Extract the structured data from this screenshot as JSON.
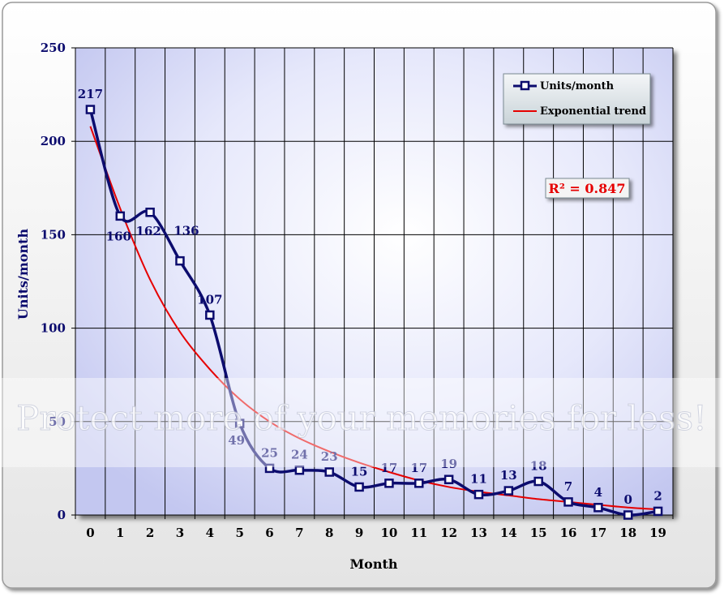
{
  "chart_data": {
    "type": "line",
    "xlabel": "Month",
    "ylabel": "Units/month",
    "ylim": [
      0,
      250
    ],
    "yticks": [
      0,
      50,
      100,
      150,
      200,
      250
    ],
    "x": [
      0,
      1,
      2,
      3,
      4,
      5,
      6,
      7,
      8,
      9,
      10,
      11,
      12,
      13,
      14,
      15,
      16,
      17,
      18,
      19
    ],
    "grid": true,
    "legend_position": "top-right",
    "series": [
      {
        "name": "Units/month",
        "values": [
          217,
          160,
          162,
          136,
          107,
          49,
          25,
          24,
          23,
          15,
          17,
          17,
          19,
          11,
          13,
          18,
          7,
          4,
          0,
          2
        ],
        "labels": [
          "217",
          "160",
          "162",
          "136",
          "107",
          "49",
          "25",
          "24",
          "23",
          "15",
          "17",
          "17",
          "19",
          "11",
          "13",
          "18",
          "7",
          "4",
          "0",
          "2"
        ],
        "color": "#0c0c6e"
      },
      {
        "name": "Exponential trend",
        "type": "exponential-trend",
        "values": [
          208,
          164,
          126,
          98,
          78,
          62,
          50,
          41,
          34,
          28,
          23,
          18.5,
          15,
          12.5,
          10.5,
          8.5,
          7,
          5.5,
          4,
          3
        ],
        "color": "#e60000"
      }
    ],
    "annotation": "R² = 0.847",
    "annotation_color": "#e60000"
  },
  "watermark": {
    "text": "Protect more of your memories for less!"
  },
  "colors": {
    "axis_text": "#0c0c6e",
    "plot_bg": "#cfd2f5",
    "grid": "#000000"
  }
}
